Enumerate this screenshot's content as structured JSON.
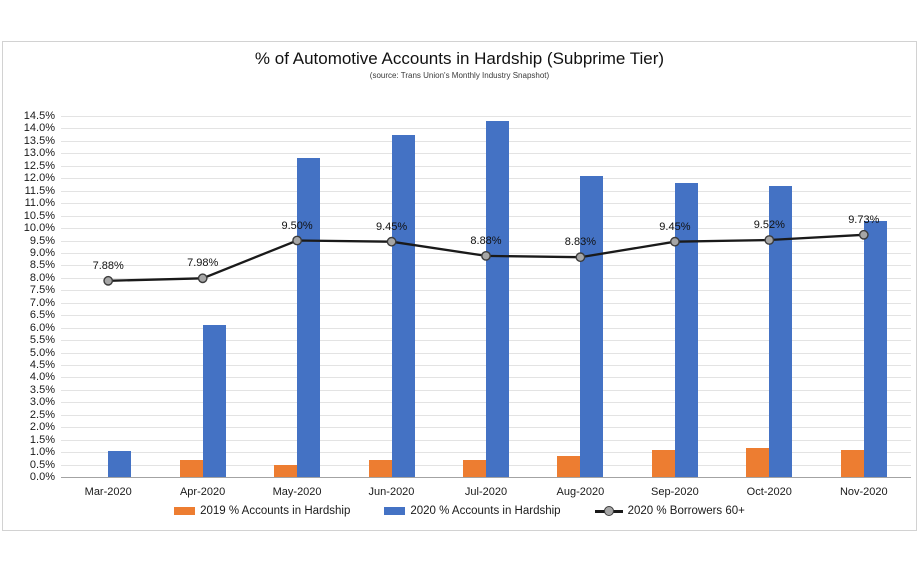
{
  "chart_data": {
    "type": "bar+line combo",
    "title": "% of Automotive Accounts in Hardship (Subprime Tier)",
    "subtitle": "(source: Trans Union's Monthly Industry Snapshot)",
    "categories": [
      "Mar-2020",
      "Apr-2020",
      "May-2020",
      "Jun-2020",
      "Jul-2020",
      "Aug-2020",
      "Sep-2020",
      "Oct-2020",
      "Nov-2020"
    ],
    "series": [
      {
        "name": "2019 % Accounts in Hardship",
        "type": "bar",
        "color": "#ED7D31",
        "values": [
          0,
          0.7,
          0.5,
          0.7,
          0.7,
          0.85,
          1.1,
          1.15,
          1.1
        ]
      },
      {
        "name": "2020 % Accounts in Hardship",
        "type": "bar",
        "color": "#4472C4",
        "values": [
          1.05,
          6.1,
          12.8,
          13.75,
          14.3,
          12.1,
          11.8,
          11.7,
          10.3
        ]
      },
      {
        "name": "2020 % Borrowers 60+",
        "type": "line",
        "color": "#1a1a1a",
        "marker_fill": "#a6a6a6",
        "marker_stroke": "#3c3c3c",
        "values": [
          7.88,
          7.98,
          9.5,
          9.45,
          8.88,
          8.83,
          9.45,
          9.52,
          9.73
        ],
        "data_labels": [
          "7.88%",
          "7.98%",
          "9.50%",
          "9.45%",
          "8.88%",
          "8.83%",
          "9.45%",
          "9.52%",
          "9.73%"
        ]
      }
    ],
    "ylim": [
      0,
      14.5
    ],
    "ytick_step": 0.5,
    "ytick_format": "percent_1dp",
    "grid": true,
    "legend_position": "bottom"
  }
}
